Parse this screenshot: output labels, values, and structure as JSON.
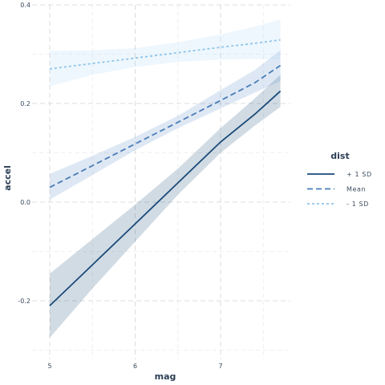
{
  "chart_data": {
    "type": "line",
    "xlabel": "mag",
    "ylabel": "accel",
    "xlim": [
      5,
      7.7
    ],
    "ylim": [
      -0.32,
      0.4
    ],
    "x_ticks": [
      5,
      6,
      7
    ],
    "x_tick_labels": [
      "5",
      "6",
      "7"
    ],
    "y_ticks": [
      -0.2,
      0,
      0.2,
      0.4
    ],
    "y_tick_labels": [
      "-0.2",
      "0.0",
      "0.2",
      "0.4"
    ],
    "grid": true,
    "legend": {
      "title": "dist",
      "position": "right"
    },
    "series": [
      {
        "name": "+ 1 SD",
        "color": "#1a4a78",
        "dash": "solid",
        "ribbon_color": "#1a4a78",
        "x": [
          5,
          5.5,
          6,
          6.5,
          7,
          7.4,
          7.7
        ],
        "y": [
          -0.21,
          -0.127,
          -0.044,
          0.039,
          0.122,
          0.178,
          0.225
        ],
        "lower": [
          -0.275,
          -0.175,
          -0.08,
          0.015,
          0.1,
          0.155,
          0.193
        ],
        "upper": [
          -0.145,
          -0.075,
          -0.005,
          0.068,
          0.15,
          0.21,
          0.258
        ]
      },
      {
        "name": "Mean",
        "color": "#4a7db8",
        "dash": "dashed",
        "ribbon_color": "#5a8ec8",
        "x": [
          5,
          5.5,
          6,
          6.5,
          7,
          7.4,
          7.7
        ],
        "y": [
          0.03,
          0.074,
          0.118,
          0.162,
          0.206,
          0.242,
          0.277
        ],
        "lower": [
          0.005,
          0.055,
          0.105,
          0.15,
          0.19,
          0.222,
          0.245
        ],
        "upper": [
          0.057,
          0.094,
          0.132,
          0.175,
          0.227,
          0.268,
          0.308
        ]
      },
      {
        "name": "- 1 SD",
        "color": "#8ec5ea",
        "dash": "dotted",
        "ribbon_color": "#a9d6f5",
        "x": [
          5,
          5.5,
          6,
          6.5,
          7,
          7.4,
          7.7
        ],
        "y": [
          0.27,
          0.281,
          0.292,
          0.303,
          0.314,
          0.322,
          0.329
        ],
        "lower": [
          0.235,
          0.258,
          0.274,
          0.284,
          0.289,
          0.29,
          0.289
        ],
        "upper": [
          0.307,
          0.308,
          0.312,
          0.324,
          0.34,
          0.356,
          0.37
        ]
      }
    ]
  }
}
